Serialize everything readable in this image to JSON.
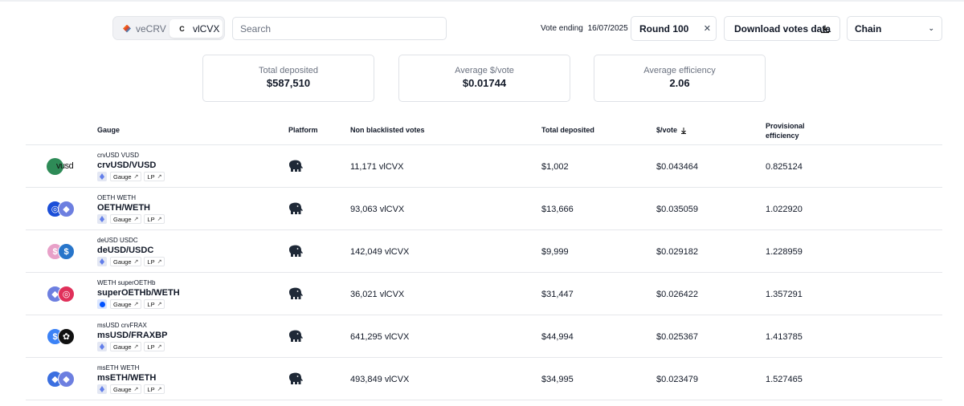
{
  "toolbar": {
    "tabs": [
      {
        "label": "veCRV",
        "icon": "curve-logo-icon"
      },
      {
        "label": "vlCVX",
        "icon": "convex-logo-icon",
        "icon_text": "C",
        "active": true
      }
    ],
    "search_placeholder": "Search",
    "vote_ending_label": "Vote ending",
    "vote_ending_date": "16/07/2025",
    "round_label": "Round 100",
    "download_label": "Download votes data",
    "chain_label": "Chain"
  },
  "stats": [
    {
      "label": "Total deposited",
      "value": "$587,510"
    },
    {
      "label": "Average $/vote",
      "value": "$0.01744"
    },
    {
      "label": "Average efficiency",
      "value": "2.06"
    }
  ],
  "table": {
    "headers": {
      "gauge": "Gauge",
      "platform": "Platform",
      "votes": "Non blacklisted votes",
      "deposited": "Total deposited",
      "per_vote": "$/vote",
      "efficiency": "Provisional efficiency"
    },
    "link_labels": {
      "gauge": "Gauge",
      "lp": "LP"
    },
    "rows": [
      {
        "tokens": "crvUSD VUSD",
        "name": "crvUSD/VUSD",
        "chain": "ethereum",
        "votes": "11,171 vlCVX",
        "deposited": "$1,002",
        "per_vote": "$0.043464",
        "efficiency": "0.825124",
        "logo_text": "vusd",
        "colors": [
          "#2e8b57",
          "#2e8b57"
        ]
      },
      {
        "tokens": "OETH WETH",
        "name": "OETH/WETH",
        "chain": "ethereum",
        "votes": "93,063 vlCVX",
        "deposited": "$13,666",
        "per_vote": "$0.035059",
        "efficiency": "1.022920",
        "colors": [
          "#1c4fd8",
          "#6d7fe0"
        ],
        "glyphs": [
          "◎",
          "◆"
        ]
      },
      {
        "tokens": "deUSD USDC",
        "name": "deUSD/USDC",
        "chain": "ethereum",
        "votes": "142,049 vlCVX",
        "deposited": "$9,999",
        "per_vote": "$0.029182",
        "efficiency": "1.228959",
        "colors": [
          "#e8a0c8",
          "#2775ca"
        ],
        "glyphs": [
          "$",
          "$"
        ]
      },
      {
        "tokens": "WETH superOETHb",
        "name": "superOETHb/WETH",
        "chain": "base",
        "votes": "36,021 vlCVX",
        "deposited": "$31,447",
        "per_vote": "$0.026422",
        "efficiency": "1.357291",
        "colors": [
          "#6d7fe0",
          "#e0305a"
        ],
        "glyphs": [
          "◆",
          "◎"
        ]
      },
      {
        "tokens": "msUSD crvFRAX",
        "name": "msUSD/FRAXBP",
        "chain": "ethereum",
        "votes": "641,295 vlCVX",
        "deposited": "$44,994",
        "per_vote": "$0.025367",
        "efficiency": "1.413785",
        "colors": [
          "#3b82f6",
          "#111111"
        ],
        "glyphs": [
          "$",
          "✿"
        ]
      },
      {
        "tokens": "msETH WETH",
        "name": "msETH/WETH",
        "chain": "ethereum",
        "votes": "493,849 vlCVX",
        "deposited": "$34,995",
        "per_vote": "$0.023479",
        "efficiency": "1.527465",
        "colors": [
          "#3b6fe0",
          "#6d7fe0"
        ],
        "glyphs": [
          "◆",
          "◆"
        ]
      }
    ]
  }
}
